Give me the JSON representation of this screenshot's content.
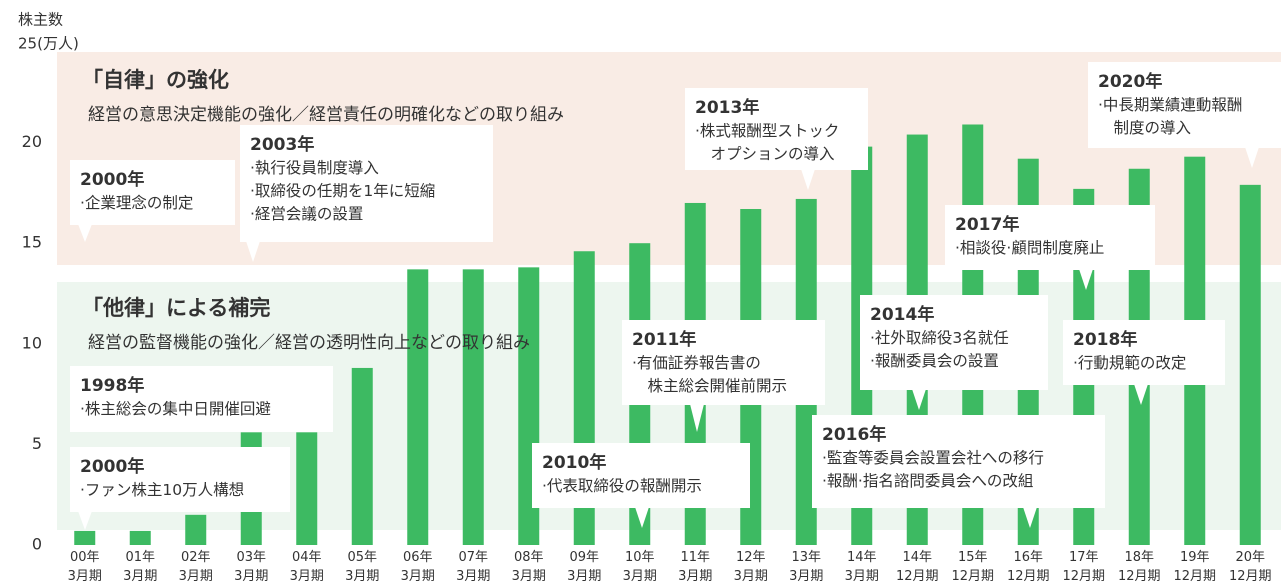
{
  "chart_data": {
    "type": "bar",
    "y_label": "株主数",
    "categories": [
      "00年\n3月期",
      "01年\n3月期",
      "02年\n3月期",
      "03年\n3月期",
      "04年\n3月期",
      "05年\n3月期",
      "06年\n3月期",
      "07年\n3月期",
      "08年\n3月期",
      "09年\n3月期",
      "10年\n3月期",
      "11年\n3月期",
      "12年\n3月期",
      "13年\n3月期",
      "14年\n3月期",
      "14年\n12月期",
      "15年\n12月期",
      "16年\n12月期",
      "17年\n12月期",
      "18年\n12月期",
      "19年\n12月期",
      "20年\n12月期"
    ],
    "values": [
      0.7,
      0.7,
      1.5,
      5.6,
      5.6,
      8.8,
      13.7,
      13.7,
      13.8,
      14.6,
      15.0,
      17.0,
      16.7,
      17.2,
      19.8,
      20.4,
      20.9,
      19.2,
      17.7,
      18.7,
      19.3,
      17.9
    ],
    "color": "#3dba62",
    "ylim": [
      0,
      25
    ],
    "yticks": [
      0,
      5,
      10,
      15,
      20,
      {
        "value": 25,
        "label": "25(万人)"
      }
    ],
    "sections": [
      {
        "title": "「自律」の強化",
        "subtitle": "経営の意思決定機能の強化／経営責任の明確化などの取り組み"
      },
      {
        "title": "「他律」による補完",
        "subtitle": "経営の監督機能の強化／経営の透明性向上などの取り組み"
      }
    ],
    "annotations": [
      {
        "year": "2000年",
        "lines": [
          "·企業理念の制定"
        ]
      },
      {
        "year": "2003年",
        "lines": [
          "·執行役員制度導入",
          "·取締役の任期を1年に短縮",
          "·経営会議の設置"
        ]
      },
      {
        "year": "2013年",
        "lines": [
          "·株式報酬型ストック",
          "　オプションの導入"
        ]
      },
      {
        "year": "2020年",
        "lines": [
          "·中長期業績連動報酬",
          "　制度の導入"
        ]
      },
      {
        "year": "2017年",
        "lines": [
          "·相談役·顧問制度廃止"
        ]
      },
      {
        "year": "2014年",
        "lines": [
          "·社外取締役3名就任",
          "·報酬委員会の設置"
        ]
      },
      {
        "year": "2018年",
        "lines": [
          "·行動規範の改定"
        ]
      },
      {
        "year": "2011年",
        "lines": [
          "·有価証券報告書の",
          "　株主総会開催前開示"
        ]
      },
      {
        "year": "1998年",
        "lines": [
          "·株主総会の集中日開催回避"
        ]
      },
      {
        "year": "2000年",
        "lines": [
          "·ファン株主10万人構想"
        ]
      },
      {
        "year": "2016年",
        "lines": [
          "·監査等委員会設置会社への移行",
          "·報酬·指名諮問委員会への改組"
        ]
      },
      {
        "year": "2010年",
        "lines": [
          "·代表取締役の報酬開示"
        ]
      }
    ]
  }
}
